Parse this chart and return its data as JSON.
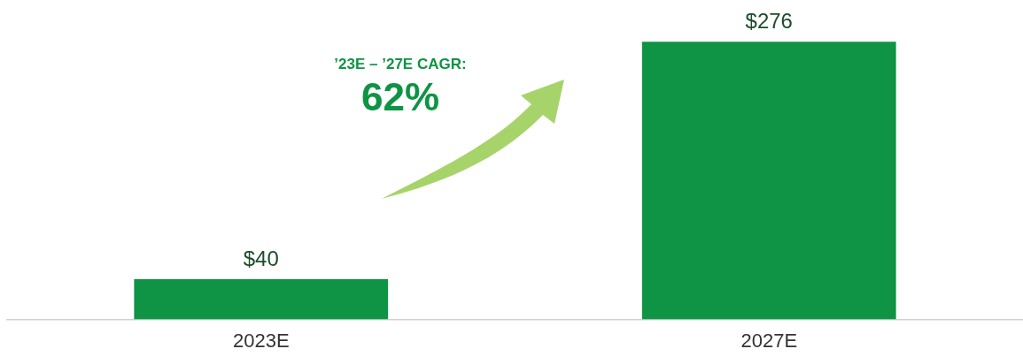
{
  "chart_data": {
    "type": "bar",
    "categories": [
      "2023E",
      "2027E"
    ],
    "values": [
      40,
      276
    ],
    "color": "#0e9444",
    "value_labels": [
      "$40",
      "$276"
    ],
    "annotations": [
      "’23E – ’27E CAGR:",
      "62%"
    ],
    "grid": false,
    "legend": false
  }
}
